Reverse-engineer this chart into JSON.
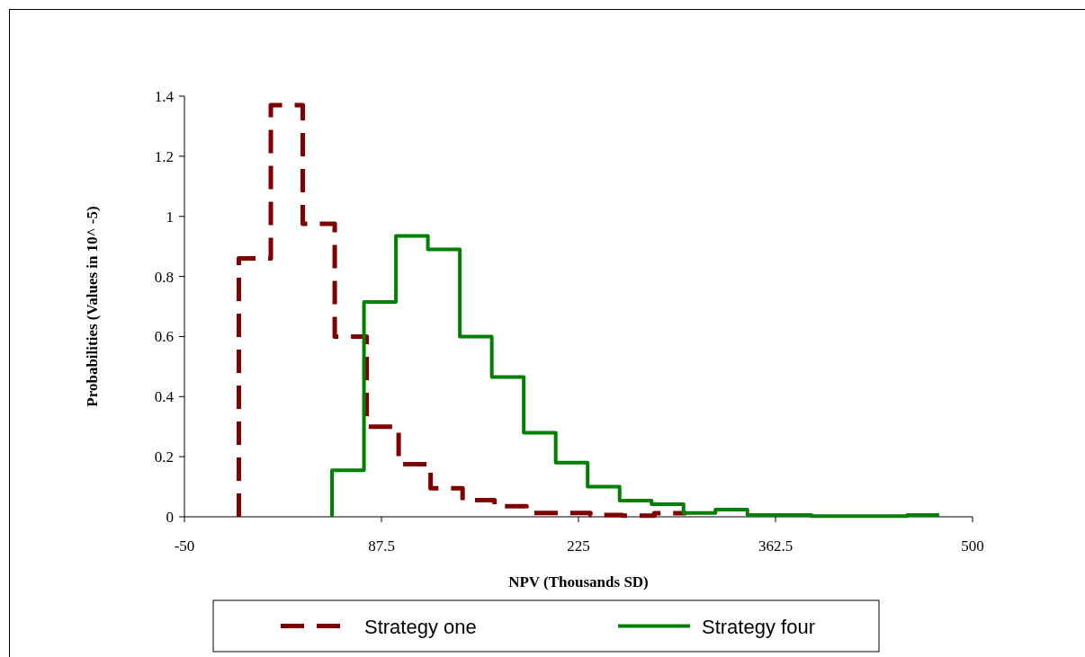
{
  "chart_data": {
    "type": "step",
    "xlabel": "NPV (Thousands SD)",
    "ylabel": "Probabilities (Values in 10^ -5)",
    "xlim": [
      -50,
      500
    ],
    "xticks": [
      -50,
      87.5,
      225,
      362.5,
      500
    ],
    "ylim": [
      0,
      1.4
    ],
    "yticks": [
      0,
      0.2,
      0.4,
      0.6,
      0.8,
      1,
      1.2,
      1.4
    ],
    "grid": false,
    "legend": "bottom",
    "marker": "none",
    "series": [
      {
        "name": "Strategy one",
        "color": "#800000",
        "line_style": "dashed",
        "x": [
          -12,
          -12,
          10.3,
          32.6,
          54.9,
          77.2,
          99.5,
          121.8,
          144.1,
          166.4,
          188.7,
          211,
          233.3,
          255.6,
          277.9,
          300.2
        ],
        "values": [
          0,
          0.86,
          1.37,
          0.975,
          0.6,
          0.3,
          0.175,
          0.095,
          0.055,
          0.035,
          0.013,
          0.013,
          0.006,
          0.004,
          0.012,
          0.012
        ]
      },
      {
        "name": "Strategy four",
        "color": "#008000",
        "line_style": "solid",
        "x": [
          53,
          53,
          75.3,
          97.6,
          119.9,
          142.2,
          164.5,
          186.8,
          209.1,
          231.4,
          253.7,
          276,
          298.3,
          320.6,
          342.9,
          365.2,
          387.5,
          409.8,
          432.1,
          454.4,
          476.7
        ],
        "values": [
          0,
          0.155,
          0.715,
          0.935,
          0.89,
          0.6,
          0.465,
          0.28,
          0.18,
          0.1,
          0.054,
          0.042,
          0.013,
          0.024,
          0.006,
          0.006,
          0.002,
          0.002,
          0.002,
          0.006,
          0.006
        ]
      }
    ]
  }
}
